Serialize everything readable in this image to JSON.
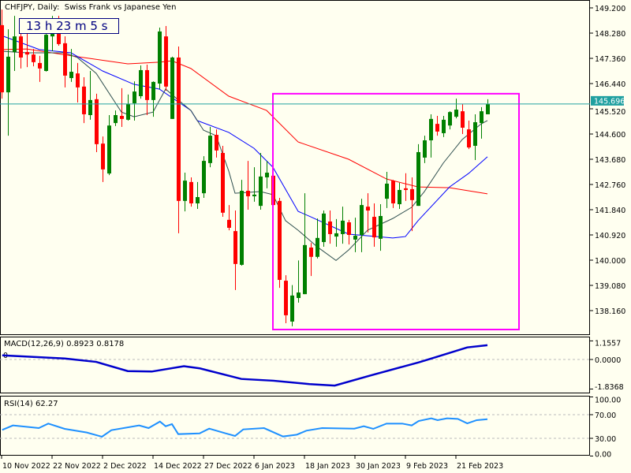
{
  "header": {
    "title": "CHFJPY, Daily:  Swiss Frank vs Japanese Yen"
  },
  "timer": {
    "text": "13 h 23 m 5 s"
  },
  "colors": {
    "bull": "#008000",
    "bear": "#ff0000",
    "ma_slow": "#ff0000",
    "ma_mid": "#0000ff",
    "ma_fast": "#2f4f4f",
    "bid_line": "#20a0a0",
    "rect": "#ff00ff",
    "macd": "#0000cc",
    "rsi": "#1e90ff"
  },
  "chart_data": {
    "type": "candlestick",
    "symbol": "CHFJPY",
    "timeframe": "Daily",
    "price_axis": {
      "ylim": [
        137.7,
        149.5
      ],
      "ticks": [
        "149.200",
        "148.280",
        "147.360",
        "146.440",
        "145.520",
        "144.600",
        "143.680",
        "142.760",
        "141.840",
        "140.920",
        "140.000",
        "139.080",
        "138.160"
      ]
    },
    "current_price": {
      "value": 145.696,
      "label": "145.696"
    },
    "date_labels": [
      {
        "index": 0,
        "text": "10 Nov 2022"
      },
      {
        "index": 8,
        "text": "22 Nov 2022"
      },
      {
        "index": 16,
        "text": "2 Dec 2022"
      },
      {
        "index": 24,
        "text": "14 Dec 2022"
      },
      {
        "index": 32,
        "text": "27 Dec 2022"
      },
      {
        "index": 40,
        "text": "6 Jan 2023"
      },
      {
        "index": 48,
        "text": "18 Jan 2023"
      },
      {
        "index": 56,
        "text": "30 Jan 2023"
      },
      {
        "index": 64,
        "text": "9 Feb 2023"
      },
      {
        "index": 72,
        "text": "21 Feb 2023"
      }
    ],
    "ohlc": [
      [
        148.57,
        149.14,
        145.89,
        146.12
      ],
      [
        146.12,
        148.42,
        144.54,
        147.42
      ],
      [
        147.59,
        148.91,
        146.9,
        148.16
      ],
      [
        148.16,
        148.83,
        146.99,
        147.39
      ],
      [
        147.59,
        148.48,
        147.04,
        147.5
      ],
      [
        147.5,
        147.7,
        147.07,
        147.22
      ],
      [
        147.19,
        147.45,
        146.5,
        146.99
      ],
      [
        146.9,
        148.31,
        146.88,
        148.22
      ],
      [
        148.16,
        148.91,
        147.62,
        148.31
      ],
      [
        148.31,
        148.91,
        147.82,
        147.88
      ],
      [
        147.91,
        148.16,
        146.3,
        146.73
      ],
      [
        146.64,
        147.7,
        146.5,
        146.87
      ],
      [
        146.81,
        147.19,
        145.75,
        146.3
      ],
      [
        146.33,
        146.67,
        145.0,
        145.32
      ],
      [
        145.29,
        146.9,
        145.12,
        145.84
      ],
      [
        145.87,
        146.07,
        143.94,
        144.23
      ],
      [
        144.25,
        144.51,
        142.85,
        143.31
      ],
      [
        143.16,
        145.29,
        143.1,
        144.91
      ],
      [
        145.0,
        145.46,
        144.89,
        145.29
      ],
      [
        145.26,
        146.27,
        144.86,
        145.15
      ],
      [
        145.12,
        146.04,
        145.09,
        145.69
      ],
      [
        145.72,
        146.52,
        145.09,
        146.15
      ],
      [
        145.98,
        147.1,
        145.89,
        146.93
      ],
      [
        146.93,
        147.13,
        145.29,
        145.84
      ],
      [
        145.84,
        146.52,
        145.23,
        146.5
      ],
      [
        146.44,
        148.48,
        146.24,
        148.34
      ],
      [
        148.16,
        148.54,
        146.18,
        146.33
      ],
      [
        145.15,
        147.42,
        145.15,
        147.39
      ],
      [
        147.39,
        147.79,
        140.98,
        142.16
      ],
      [
        142.16,
        143.19,
        141.78,
        142.9
      ],
      [
        142.85,
        143.02,
        141.95,
        142.07
      ],
      [
        142.07,
        142.85,
        141.87,
        142.3
      ],
      [
        142.44,
        143.79,
        142.27,
        143.62
      ],
      [
        143.54,
        144.86,
        143.39,
        144.54
      ],
      [
        144.57,
        144.77,
        143.74,
        144.0
      ],
      [
        143.91,
        144.17,
        141.58,
        141.73
      ],
      [
        141.47,
        142.01,
        141.09,
        141.18
      ],
      [
        141.06,
        141.81,
        138.91,
        139.86
      ],
      [
        139.83,
        142.93,
        139.8,
        142.53
      ],
      [
        142.53,
        143.62,
        141.84,
        142.33
      ],
      [
        142.33,
        143.39,
        142.13,
        142.39
      ],
      [
        141.98,
        143.91,
        141.84,
        143.05
      ],
      [
        143.02,
        143.62,
        142.62,
        143.19
      ],
      [
        143.08,
        143.88,
        141.93,
        142.01
      ],
      [
        142.16,
        142.27,
        138.99,
        139.28
      ],
      [
        139.25,
        139.45,
        137.7,
        137.99
      ],
      [
        137.76,
        139.09,
        137.59,
        138.71
      ],
      [
        138.62,
        139.99,
        138.45,
        138.82
      ],
      [
        138.76,
        142.44,
        138.76,
        140.55
      ],
      [
        140.46,
        140.63,
        139.42,
        140.12
      ],
      [
        140.12,
        141.52,
        140.06,
        140.81
      ],
      [
        140.66,
        141.81,
        140.49,
        141.7
      ],
      [
        141.41,
        141.81,
        140.6,
        140.95
      ],
      [
        140.86,
        141.5,
        140.49,
        140.98
      ],
      [
        140.95,
        141.95,
        140.6,
        141.44
      ],
      [
        141.38,
        141.47,
        140.57,
        140.92
      ],
      [
        140.75,
        141.55,
        140.29,
        140.89
      ],
      [
        140.92,
        142.24,
        140.29,
        142.01
      ],
      [
        141.95,
        142.44,
        141.01,
        141.81
      ],
      [
        141.58,
        142.07,
        140.49,
        140.83
      ],
      [
        140.78,
        142.04,
        140.34,
        141.61
      ],
      [
        142.24,
        143.22,
        141.9,
        142.79
      ],
      [
        142.9,
        142.93,
        141.9,
        142.07
      ],
      [
        142.04,
        142.82,
        141.87,
        142.56
      ],
      [
        142.62,
        143.17,
        142.16,
        142.56
      ],
      [
        142.59,
        143.02,
        141.06,
        142.19
      ],
      [
        141.98,
        144.23,
        141.98,
        143.94
      ],
      [
        143.74,
        144.54,
        143.54,
        144.37
      ],
      [
        144.37,
        145.32,
        143.74,
        145.15
      ],
      [
        144.97,
        145.26,
        144.54,
        144.69
      ],
      [
        144.63,
        145.26,
        144.49,
        145.12
      ],
      [
        144.91,
        145.43,
        144.77,
        145.4
      ],
      [
        145.23,
        145.89,
        145.17,
        145.49
      ],
      [
        145.43,
        145.69,
        144.6,
        144.83
      ],
      [
        144.77,
        145.09,
        144.05,
        144.11
      ],
      [
        144.17,
        145.32,
        143.65,
        145.03
      ],
      [
        145.0,
        145.58,
        144.43,
        145.43
      ],
      [
        145.32,
        145.87,
        145.32,
        145.69
      ]
    ],
    "moving_averages": [
      {
        "name": "ma_slow",
        "points": [
          [
            0,
            147.68
          ],
          [
            4,
            147.7
          ],
          [
            12,
            147.42
          ],
          [
            20,
            147.16
          ],
          [
            25,
            147.22
          ],
          [
            27,
            147.27
          ],
          [
            30,
            146.99
          ],
          [
            36,
            145.98
          ],
          [
            42,
            145.46
          ],
          [
            47,
            144.31
          ],
          [
            55,
            143.68
          ],
          [
            61,
            142.96
          ],
          [
            66,
            142.67
          ],
          [
            71,
            142.64
          ],
          [
            77,
            142.42
          ]
        ]
      },
      {
        "name": "ma_mid",
        "points": [
          [
            0,
            148.19
          ],
          [
            6,
            147.68
          ],
          [
            11,
            147.56
          ],
          [
            16,
            146.9
          ],
          [
            21,
            146.41
          ],
          [
            25,
            146.24
          ],
          [
            30,
            145.46
          ],
          [
            31,
            145.09
          ],
          [
            36,
            144.66
          ],
          [
            40,
            144.08
          ],
          [
            43,
            143.39
          ],
          [
            47,
            141.78
          ],
          [
            49,
            141.58
          ],
          [
            55,
            140.95
          ],
          [
            62,
            140.81
          ],
          [
            64,
            140.86
          ],
          [
            66,
            141.44
          ],
          [
            71,
            142.67
          ],
          [
            74,
            143.16
          ],
          [
            77,
            143.77
          ]
        ]
      },
      {
        "name": "ma_fast",
        "points": [
          [
            0,
            147.62
          ],
          [
            4,
            147.56
          ],
          [
            10,
            147.56
          ],
          [
            12,
            147.39
          ],
          [
            15,
            146.81
          ],
          [
            18,
            145.75
          ],
          [
            19,
            145.4
          ],
          [
            21,
            145.23
          ],
          [
            24,
            145.4
          ],
          [
            26,
            146.24
          ],
          [
            28,
            145.84
          ],
          [
            30,
            145.46
          ],
          [
            32,
            144.74
          ],
          [
            34,
            144.54
          ],
          [
            36,
            143.25
          ],
          [
            37,
            142.44
          ],
          [
            41,
            142.5
          ],
          [
            43,
            142.39
          ],
          [
            45,
            141.44
          ],
          [
            47,
            141.09
          ],
          [
            50,
            140.49
          ],
          [
            53,
            139.99
          ],
          [
            55,
            140.37
          ],
          [
            58,
            141.09
          ],
          [
            62,
            141.52
          ],
          [
            65,
            141.93
          ],
          [
            67,
            142.5
          ],
          [
            70,
            143.54
          ],
          [
            73,
            144.4
          ],
          [
            76,
            144.97
          ],
          [
            77,
            145.09
          ]
        ]
      }
    ],
    "rectangle": {
      "index_from": 43,
      "index_to": 82,
      "price_high": 146.07,
      "price_low": 137.47
    },
    "macd": {
      "label": "MACD(12,26,9) 0.8923 0.8178",
      "zero_marker": "0",
      "ticks": [
        "1.1557",
        "0.0000",
        "-1.8368"
      ],
      "ylim": [
        -1.8368,
        1.1557
      ],
      "points": [
        [
          0.1,
          0.26
        ],
        [
          10,
          0.06
        ],
        [
          15,
          -0.15
        ],
        [
          20,
          -0.72
        ],
        [
          23.8,
          -0.75
        ],
        [
          28.9,
          -0.42
        ],
        [
          31.4,
          -0.55
        ],
        [
          38,
          -1.21
        ],
        [
          43.1,
          -1.32
        ],
        [
          48.8,
          -1.53
        ],
        [
          52.8,
          -1.62
        ],
        [
          58.4,
          -1.0
        ],
        [
          66.1,
          -0.18
        ],
        [
          68.1,
          0.06
        ],
        [
          73.8,
          0.75
        ],
        [
          77,
          0.89
        ]
      ]
    },
    "rsi": {
      "label": "RSI(14) 62.27",
      "ticks": [
        "100.00",
        "70.00",
        "30.00",
        "0.00"
      ],
      "levels": [
        70,
        30
      ],
      "points": [
        [
          0.1,
          44.2
        ],
        [
          1.8,
          51.8
        ],
        [
          5.9,
          47.3
        ],
        [
          7.4,
          54.9
        ],
        [
          10,
          46
        ],
        [
          13.5,
          39.8
        ],
        [
          15.9,
          32.7
        ],
        [
          17.4,
          43.8
        ],
        [
          21.8,
          51.8
        ],
        [
          23.3,
          47.3
        ],
        [
          25.1,
          58.4
        ],
        [
          26,
          50.4
        ],
        [
          27,
          54
        ],
        [
          28,
          37.1
        ],
        [
          31.4,
          38.4
        ],
        [
          32.9,
          46.4
        ],
        [
          35.5,
          38.4
        ],
        [
          37,
          34
        ],
        [
          38.3,
          45.1
        ],
        [
          41.6,
          47.3
        ],
        [
          44.6,
          33.1
        ],
        [
          46.8,
          36.2
        ],
        [
          48.3,
          42.9
        ],
        [
          50.8,
          47.3
        ],
        [
          55.9,
          46.4
        ],
        [
          57.4,
          50.4
        ],
        [
          58.9,
          46
        ],
        [
          61,
          54.9
        ],
        [
          63.5,
          54.9
        ],
        [
          65,
          51.8
        ],
        [
          66.1,
          59.3
        ],
        [
          68.1,
          63.8
        ],
        [
          69.1,
          60.7
        ],
        [
          70.6,
          63.8
        ],
        [
          72.3,
          62.9
        ],
        [
          73.8,
          55.3
        ],
        [
          75.3,
          60.7
        ],
        [
          77,
          62.27
        ]
      ]
    }
  }
}
